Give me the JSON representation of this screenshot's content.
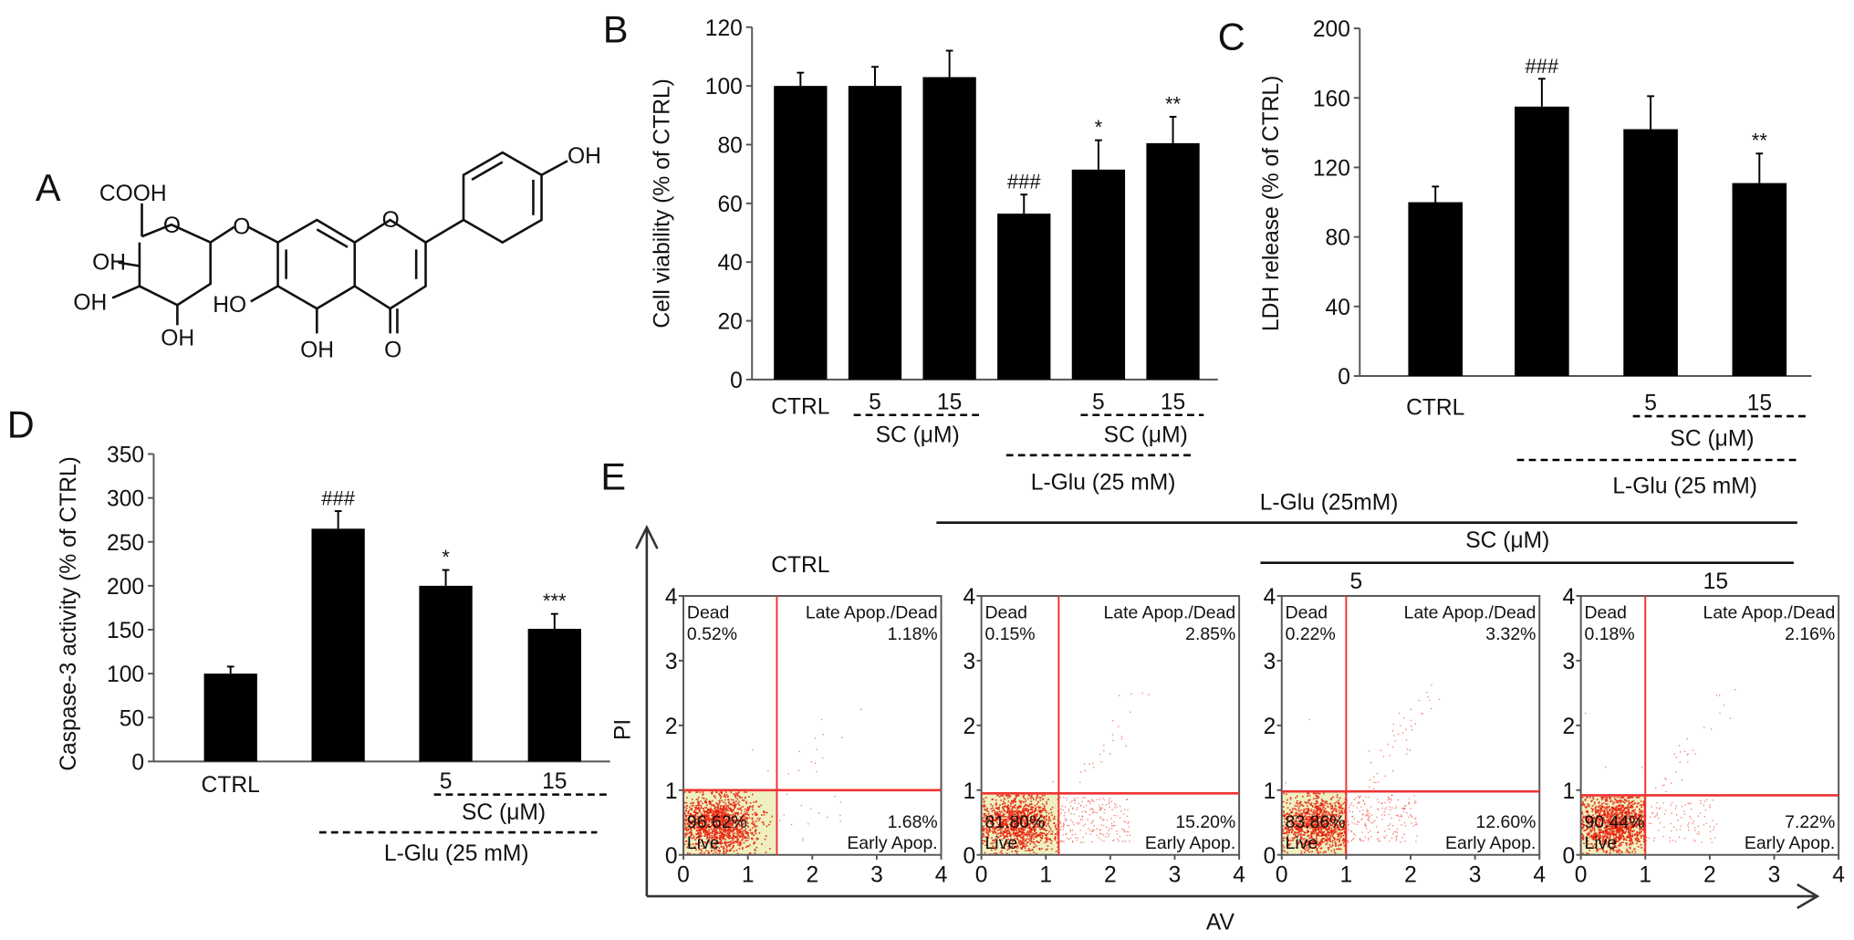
{
  "panel_labels": {
    "a": "A",
    "b": "B",
    "c": "C",
    "d": "D",
    "e": "E"
  },
  "structure": {
    "cooh": "COOH",
    "o_ring_sugar": "O",
    "oh1": "OH",
    "oh2": "OH",
    "oh3": "OH",
    "o_link": "O",
    "o_ring": "O",
    "oh_phenyl": "OH",
    "ho": "HO",
    "oh_5": "OH",
    "o_carbonyl": "O"
  },
  "chart_data": [
    {
      "id": "B",
      "type": "bar",
      "ylabel": "Cell viability (% of  CTRL)",
      "ylim": [
        0,
        120
      ],
      "yticks": [
        0,
        20,
        40,
        60,
        80,
        100,
        120
      ],
      "categories": [
        "CTRL",
        "5",
        "15",
        "",
        "5",
        "15"
      ],
      "values": [
        100,
        100,
        103,
        56.5,
        71.5,
        80.5
      ],
      "errors": [
        4.5,
        6.5,
        9,
        6.5,
        10,
        9
      ],
      "annotations": [
        "",
        "",
        "",
        "###",
        "*",
        "**"
      ],
      "groups": [
        {
          "label": "SC (μM)",
          "bars": [
            1,
            2
          ]
        },
        {
          "label": "SC (μM)",
          "bars": [
            4,
            5
          ]
        },
        {
          "label": "L-Glu (25 mM)",
          "bars": [
            3,
            5
          ]
        }
      ],
      "color": "#000000"
    },
    {
      "id": "C",
      "type": "bar",
      "ylabel": "LDH release (% of CTRL)",
      "ylim": [
        0,
        200
      ],
      "yticks": [
        0,
        40,
        80,
        120,
        160,
        200
      ],
      "categories": [
        "CTRL",
        "",
        "5",
        "15"
      ],
      "values": [
        100,
        155,
        142,
        111
      ],
      "errors": [
        9,
        16,
        19,
        17
      ],
      "annotations": [
        "",
        "###",
        "",
        "**"
      ],
      "groups": [
        {
          "label": "SC (μM)",
          "bars": [
            2,
            3
          ]
        },
        {
          "label": "L-Glu (25 mM)",
          "bars": [
            1,
            3
          ]
        }
      ],
      "color": "#000000"
    },
    {
      "id": "D",
      "type": "bar",
      "ylabel": "Caspase-3 activity (% of CTRL)",
      "ylim": [
        0,
        350
      ],
      "yticks": [
        0,
        50,
        100,
        150,
        200,
        250,
        300,
        350
      ],
      "categories": [
        "CTRL",
        "",
        "5",
        "15"
      ],
      "values": [
        100,
        265,
        200,
        151
      ],
      "errors": [
        8,
        20,
        18,
        17
      ],
      "annotations": [
        "",
        "###",
        "*",
        "***"
      ],
      "groups": [
        {
          "label": "SC (μM)",
          "bars": [
            2,
            3
          ]
        },
        {
          "label": "L-Glu (25 mM)",
          "bars": [
            1,
            3
          ]
        }
      ],
      "color": "#000000"
    },
    {
      "id": "E",
      "type": "scatter",
      "xlabel": "AV",
      "ylabel": "PI",
      "xlim": [
        0,
        4
      ],
      "ylim": [
        0,
        4
      ],
      "xticks": [
        0,
        1,
        2,
        3,
        4
      ],
      "yticks": [
        0,
        1,
        2,
        3,
        4
      ],
      "header_lglu": "L-Glu (25mM)",
      "header_sc": "SC (μM)",
      "quadrant_names": {
        "ul": "Dead",
        "ur": "Late Apop./Dead",
        "ll": "Live",
        "lr": "Early Apop."
      },
      "point_color": "#e8200c",
      "gate_color": "#ee3333",
      "live_fill": "#eef0c0",
      "plots": [
        {
          "title": "CTRL",
          "gate_x": 1.45,
          "gate_y": 1.0,
          "dead": "0.52%",
          "late": "1.18%",
          "live": "96.62%",
          "early": "1.68%"
        },
        {
          "title": "",
          "gate_x": 1.2,
          "gate_y": 0.95,
          "dead": "0.15%",
          "late": "2.85%",
          "live": "81.80%",
          "early": "15.20%"
        },
        {
          "title": "5",
          "gate_x": 1.0,
          "gate_y": 0.98,
          "dead": "0.22%",
          "late": "3.32%",
          "live": "83.86%",
          "early": "12.60%"
        },
        {
          "title": "15",
          "gate_x": 1.0,
          "gate_y": 0.92,
          "dead": "0.18%",
          "late": "2.16%",
          "live": "90.44%",
          "early": "7.22%"
        }
      ]
    }
  ]
}
